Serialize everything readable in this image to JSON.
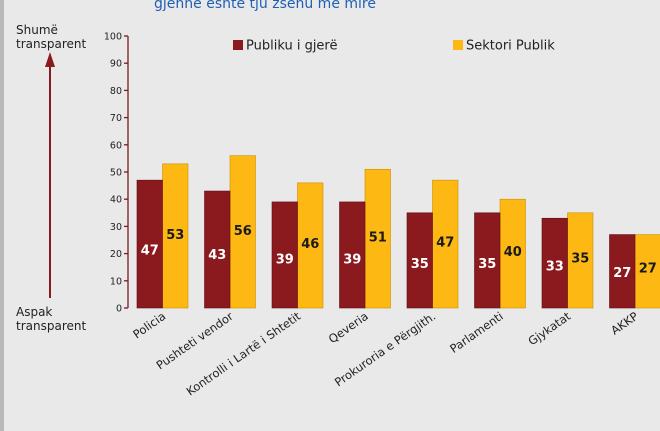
{
  "header": {
    "caption": "gjennë është tju zsehu me mire"
  },
  "scale": {
    "top_label": [
      "Shumë",
      "transparent"
    ],
    "bottom_label": [
      "Aspak",
      "transparent"
    ]
  },
  "colors": {
    "series_1": "#8b1a1f",
    "series_2": "#fdb813",
    "axis": "#7a1b1f",
    "arrow": "#8b1a1f"
  },
  "chart_data": {
    "type": "bar",
    "title": "",
    "xlabel": "",
    "ylabel": "",
    "ylim": [
      0,
      100
    ],
    "yticks": [
      0,
      10,
      20,
      30,
      40,
      50,
      60,
      70,
      80,
      90,
      100
    ],
    "grid": false,
    "legend_position": "top",
    "categories": [
      "Policia",
      "Pushteti vendor",
      "Kontrolli i Lartë i Shtetit",
      "Qeveria",
      "Prokuroria e Përgjith.",
      "Parlamenti",
      "Gjykatat",
      "AKKP"
    ],
    "series": [
      {
        "name": "Publiku i gjerë",
        "values": [
          47,
          43,
          39,
          39,
          35,
          35,
          33,
          27
        ]
      },
      {
        "name": "Sektori Publik",
        "values": [
          53,
          56,
          46,
          51,
          47,
          40,
          35,
          27
        ]
      }
    ],
    "data_labels": [
      [
        "47",
        "43",
        "39",
        "39",
        "35",
        "35",
        "33",
        "27"
      ],
      [
        "53",
        "56",
        "46",
        "51",
        "47",
        "40",
        "35",
        "27"
      ]
    ]
  }
}
